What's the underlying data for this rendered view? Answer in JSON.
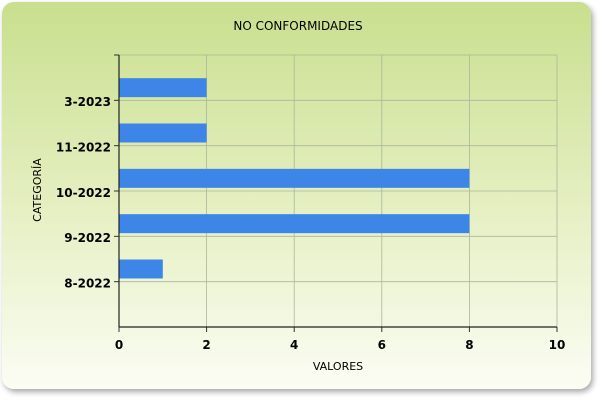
{
  "chart_data": {
    "type": "bar",
    "orientation": "horizontal",
    "title": "NO CONFORMIDADES",
    "xlabel": "VALORES",
    "ylabel": "CATEGORÍA",
    "categories": [
      "8-2022",
      "9-2022",
      "10-2022",
      "11-2022",
      "3-2023"
    ],
    "values": [
      1,
      8,
      8,
      2,
      2
    ],
    "xlim": [
      0,
      10
    ],
    "xticks": [
      "0",
      "2",
      "4",
      "6",
      "8",
      "10"
    ],
    "grid": true,
    "bar_color": "#3d86e8"
  }
}
